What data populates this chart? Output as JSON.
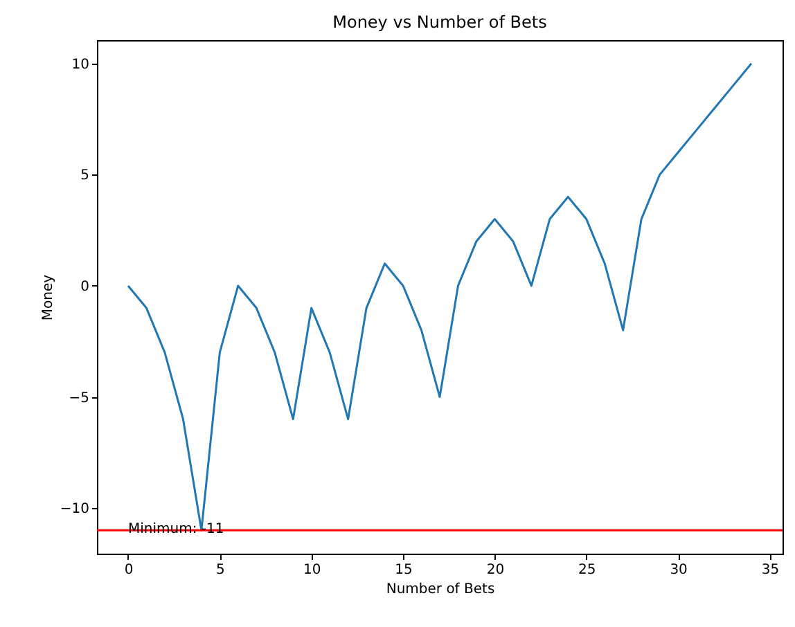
{
  "chart_data": {
    "type": "line",
    "title": "Money vs Number of Bets",
    "xlabel": "Number of Bets",
    "ylabel": "Money",
    "x": [
      0,
      1,
      2,
      3,
      4,
      5,
      6,
      7,
      8,
      9,
      10,
      11,
      12,
      13,
      14,
      15,
      16,
      17,
      18,
      19,
      20,
      21,
      22,
      23,
      24,
      25,
      26,
      27,
      28,
      29,
      30,
      31,
      32,
      33,
      34
    ],
    "series": [
      {
        "color": "#1f77b4",
        "values": [
          0,
          -1,
          -3,
          -6,
          -11,
          -3,
          0,
          -1,
          -3,
          -6,
          -1,
          -3,
          -6,
          -1,
          1,
          0,
          -2,
          -5,
          0,
          2,
          3,
          2,
          0,
          3,
          4,
          3,
          1,
          -2,
          3,
          5,
          6,
          7,
          8,
          9,
          10
        ]
      }
    ],
    "xlim": [
      -1.7,
      35.7
    ],
    "ylim": [
      -12.05,
      11.05
    ],
    "xticks": [
      0,
      5,
      10,
      15,
      20,
      25,
      30,
      35
    ],
    "yticks": [
      -10,
      -5,
      0,
      5,
      10
    ],
    "ref_lines": [
      {
        "axis": "y",
        "value": -11,
        "color": "#ff0000",
        "label": "Minimum: -11"
      }
    ],
    "grid": false,
    "marker": "none",
    "line_style": "solid"
  }
}
